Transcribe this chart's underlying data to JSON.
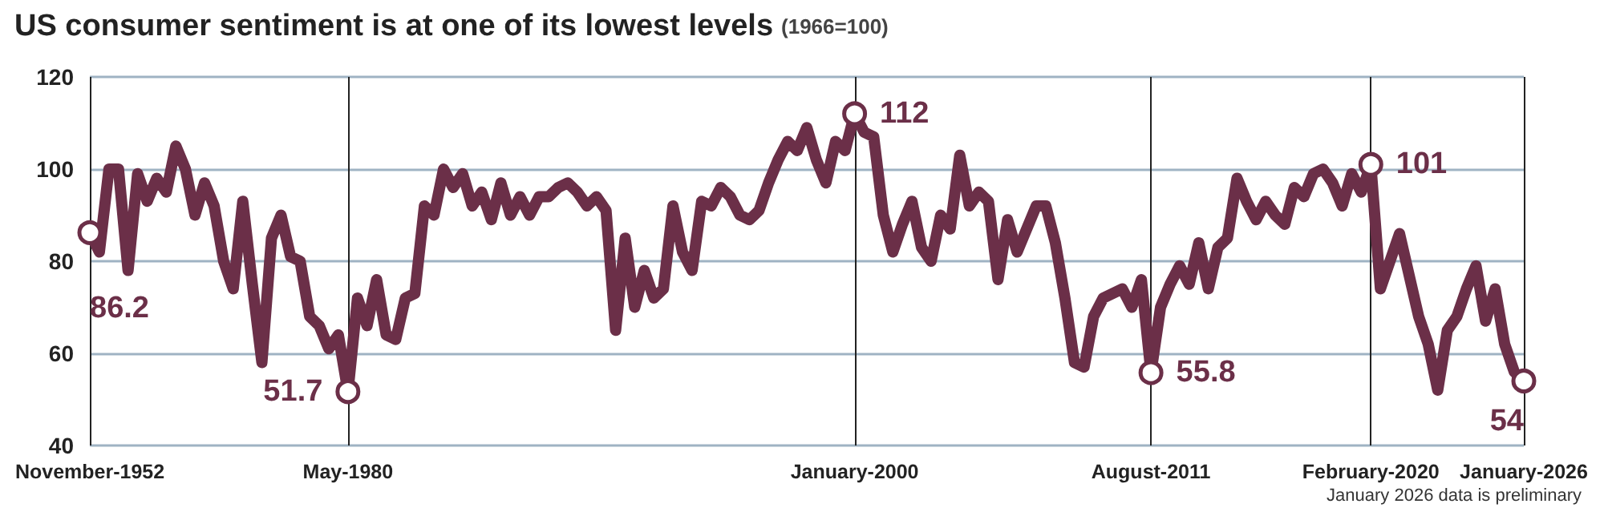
{
  "chart_data": {
    "type": "line",
    "title": "US consumer sentiment is at one of its lowest levels",
    "subtitle": "(1966=100)",
    "categories": [
      "November-1952",
      null,
      null,
      null,
      null,
      null,
      null,
      null,
      null,
      null,
      null,
      null,
      null,
      null,
      null,
      null,
      null,
      null,
      null,
      null,
      null,
      null,
      null,
      null,
      null,
      null,
      null,
      "May-1980",
      null,
      null,
      null,
      null,
      null,
      null,
      null,
      null,
      null,
      null,
      null,
      null,
      null,
      null,
      null,
      null,
      null,
      null,
      null,
      null,
      null,
      null,
      null,
      null,
      null,
      null,
      null,
      null,
      null,
      null,
      null,
      null,
      null,
      null,
      null,
      null,
      null,
      null,
      null,
      null,
      null,
      null,
      null,
      null,
      null,
      null,
      null,
      null,
      null,
      null,
      null,
      null,
      "January-2000",
      null,
      null,
      null,
      null,
      null,
      null,
      null,
      null,
      null,
      null,
      null,
      null,
      null,
      null,
      null,
      null,
      null,
      null,
      null,
      null,
      null,
      null,
      null,
      null,
      null,
      null,
      null,
      null,
      null,
      null,
      "August-2011",
      null,
      null,
      null,
      null,
      null,
      null,
      null,
      null,
      null,
      null,
      null,
      null,
      null,
      null,
      null,
      null,
      null,
      null,
      null,
      null,
      null,
      null,
      "February-2020",
      null,
      null,
      null,
      null,
      null,
      null,
      null,
      null,
      null,
      null,
      null,
      null,
      null,
      null,
      null,
      "January-2026"
    ],
    "series": [
      {
        "color": "#6b2f48",
        "values": [
          86.2,
          82,
          100,
          100,
          78,
          99,
          93,
          98,
          95,
          105,
          100,
          90,
          97,
          92,
          80,
          74,
          93,
          75,
          58,
          85,
          90,
          81,
          80,
          68,
          66,
          61,
          64,
          51.7,
          72,
          66,
          76,
          64,
          63,
          72,
          73,
          92,
          90,
          100,
          96,
          99,
          92,
          95,
          89,
          97,
          90,
          94,
          90,
          94,
          94,
          96,
          97,
          95,
          92,
          94,
          91,
          65,
          85,
          70,
          78,
          72,
          74,
          92,
          82,
          78,
          93,
          92,
          96,
          94,
          90,
          89,
          91,
          97,
          102,
          106,
          104,
          109,
          102,
          97,
          106,
          104,
          112,
          108,
          107,
          90,
          82,
          88,
          93,
          83,
          80,
          90,
          87,
          103,
          92,
          95,
          93,
          76,
          89,
          82,
          87,
          92,
          92,
          84,
          72,
          58,
          57,
          68,
          72,
          73,
          74,
          70,
          76,
          55.8,
          70,
          75,
          79,
          75,
          84,
          74,
          83,
          85,
          98,
          93,
          89,
          93,
          90,
          88,
          96,
          94,
          99,
          100,
          97,
          92,
          99,
          95,
          101,
          74,
          80,
          86,
          77,
          68,
          62,
          52,
          65,
          68,
          74,
          79,
          67,
          74,
          62,
          56,
          54
        ]
      },
      {
        "type": "scatter",
        "color": "#6b2f48",
        "x": [
          "November-1952",
          "May-1980",
          "January-2000",
          "August-2011",
          "February-2020",
          "January-2026"
        ],
        "values": [
          86.2,
          51.7,
          112,
          55.8,
          101,
          54
        ],
        "data_labels": true,
        "marker": "circle"
      }
    ],
    "ylim": [
      40,
      120
    ],
    "yticks": [
      40,
      60,
      80,
      100,
      120
    ],
    "grid": true,
    "line_style": "solid",
    "annotations": [
      "January 2026 data is preliminary"
    ]
  }
}
